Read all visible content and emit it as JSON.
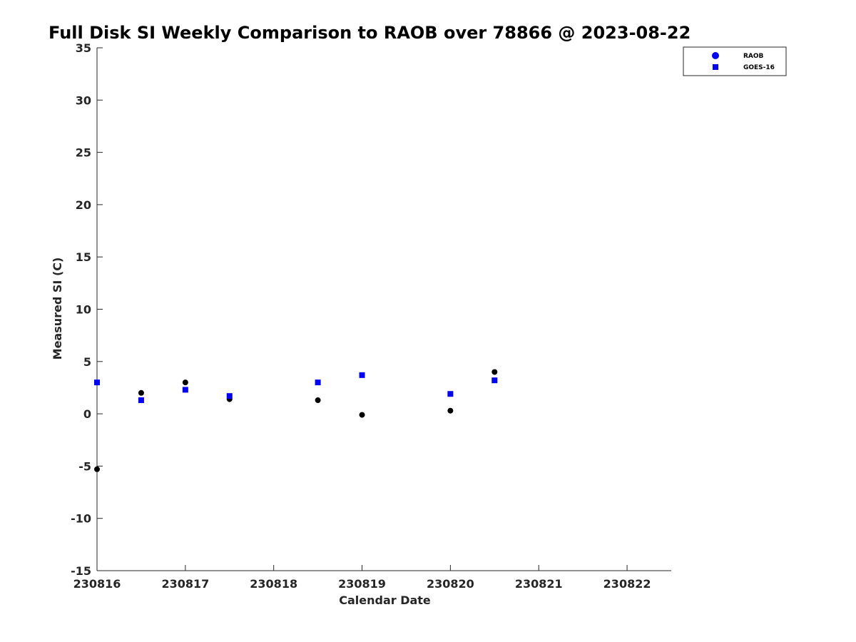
{
  "chart_data": {
    "type": "scatter",
    "title": "Full Disk SI Weekly Comparison to RAOB over 78866 @ 2023-08-22",
    "xlabel": "Calendar Date",
    "ylabel": "Measured SI (C)",
    "xlim": [
      "2023-08-16",
      "2023-08-22 12:00"
    ],
    "ylim": [
      -15,
      35
    ],
    "x_ticks": [
      "230816",
      "230817",
      "230818",
      "230819",
      "230820",
      "230821",
      "230822"
    ],
    "y_ticks": [
      "-15",
      "-10",
      "-5",
      "0",
      "5",
      "10",
      "15",
      "20",
      "25",
      "30",
      "35"
    ],
    "grid": false,
    "legend_position": "top-right",
    "series": [
      {
        "name": "RAOB",
        "marker": "circle",
        "color": "#000000",
        "legend_color": "#0000ff",
        "points": [
          {
            "x": "2023-08-16 00:00",
            "y": -5.3
          },
          {
            "x": "2023-08-16 12:00",
            "y": 2.0
          },
          {
            "x": "2023-08-17 00:00",
            "y": 3.0
          },
          {
            "x": "2023-08-17 12:00",
            "y": 1.4
          },
          {
            "x": "2023-08-18 12:00",
            "y": 1.3
          },
          {
            "x": "2023-08-19 00:00",
            "y": -0.1
          },
          {
            "x": "2023-08-20 00:00",
            "y": 0.3
          },
          {
            "x": "2023-08-20 12:00",
            "y": 4.0
          }
        ]
      },
      {
        "name": "GOES-16",
        "marker": "square",
        "color": "#0000ff",
        "points": [
          {
            "x": "2023-08-16 00:00",
            "y": 3.0
          },
          {
            "x": "2023-08-16 12:00",
            "y": 1.3
          },
          {
            "x": "2023-08-17 00:00",
            "y": 2.3
          },
          {
            "x": "2023-08-17 12:00",
            "y": 1.7
          },
          {
            "x": "2023-08-18 12:00",
            "y": 3.0
          },
          {
            "x": "2023-08-19 00:00",
            "y": 3.7
          },
          {
            "x": "2023-08-20 00:00",
            "y": 1.9
          },
          {
            "x": "2023-08-20 12:00",
            "y": 3.2
          }
        ]
      }
    ]
  }
}
